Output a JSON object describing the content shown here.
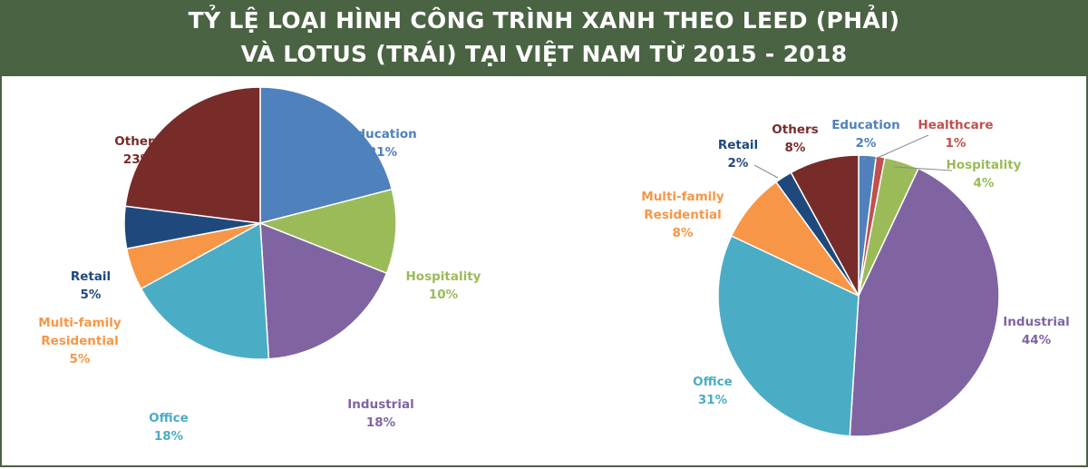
{
  "header": {
    "title_line1": "TỶ LỆ LOẠI HÌNH CÔNG TRÌNH XANH THEO LEED (PHẢI)",
    "title_line2": "VÀ LOTUS (TRÁI) TẠI VIỆT NAM TỪ 2015 - 2018"
  },
  "colors": {
    "header_bg": "#4a6343",
    "Education": "#4f81bd",
    "Healthcare": "#c0504d",
    "Hospitality": "#9bbb59",
    "Industrial": "#8064a2",
    "Office": "#4bacc6",
    "Multi-family Residential": "#f79646",
    "Retail": "#1f497d",
    "Others": "#772c2a"
  },
  "chart_data": [
    {
      "type": "pie",
      "title": "",
      "slices": [
        {
          "name": "Education",
          "label_lines": [
            "Education"
          ],
          "value_label": "21%",
          "value": 21
        },
        {
          "name": "Hospitality",
          "label_lines": [
            "Hospitality"
          ],
          "value_label": "10%",
          "value": 10
        },
        {
          "name": "Industrial",
          "label_lines": [
            "Industrial"
          ],
          "value_label": "18%",
          "value": 18
        },
        {
          "name": "Office",
          "label_lines": [
            "Office"
          ],
          "value_label": "18%",
          "value": 18
        },
        {
          "name": "Multi-family Residential",
          "label_lines": [
            "Multi-family",
            "Residential"
          ],
          "value_label": "5%",
          "value": 5
        },
        {
          "name": "Retail",
          "label_lines": [
            "Retail"
          ],
          "value_label": "5%",
          "value": 5
        },
        {
          "name": "Others",
          "label_lines": [
            "Others"
          ],
          "value_label": "23%",
          "value": 23
        }
      ]
    },
    {
      "type": "pie",
      "title": "",
      "slices": [
        {
          "name": "Education",
          "label_lines": [
            "Education"
          ],
          "value_label": "2%",
          "value": 2
        },
        {
          "name": "Healthcare",
          "label_lines": [
            "Healthcare"
          ],
          "value_label": "1%",
          "value": 1
        },
        {
          "name": "Hospitality",
          "label_lines": [
            "Hospitality"
          ],
          "value_label": "4%",
          "value": 4
        },
        {
          "name": "Industrial",
          "label_lines": [
            "Industrial"
          ],
          "value_label": "44%",
          "value": 44
        },
        {
          "name": "Office",
          "label_lines": [
            "Office"
          ],
          "value_label": "31%",
          "value": 31
        },
        {
          "name": "Multi-family Residential",
          "label_lines": [
            "Multi-family",
            "Residential"
          ],
          "value_label": "8%",
          "value": 8
        },
        {
          "name": "Retail",
          "label_lines": [
            "Retail"
          ],
          "value_label": "2%",
          "value": 2
        },
        {
          "name": "Others",
          "label_lines": [
            "Others"
          ],
          "value_label": "8%",
          "value": 8
        }
      ]
    }
  ]
}
